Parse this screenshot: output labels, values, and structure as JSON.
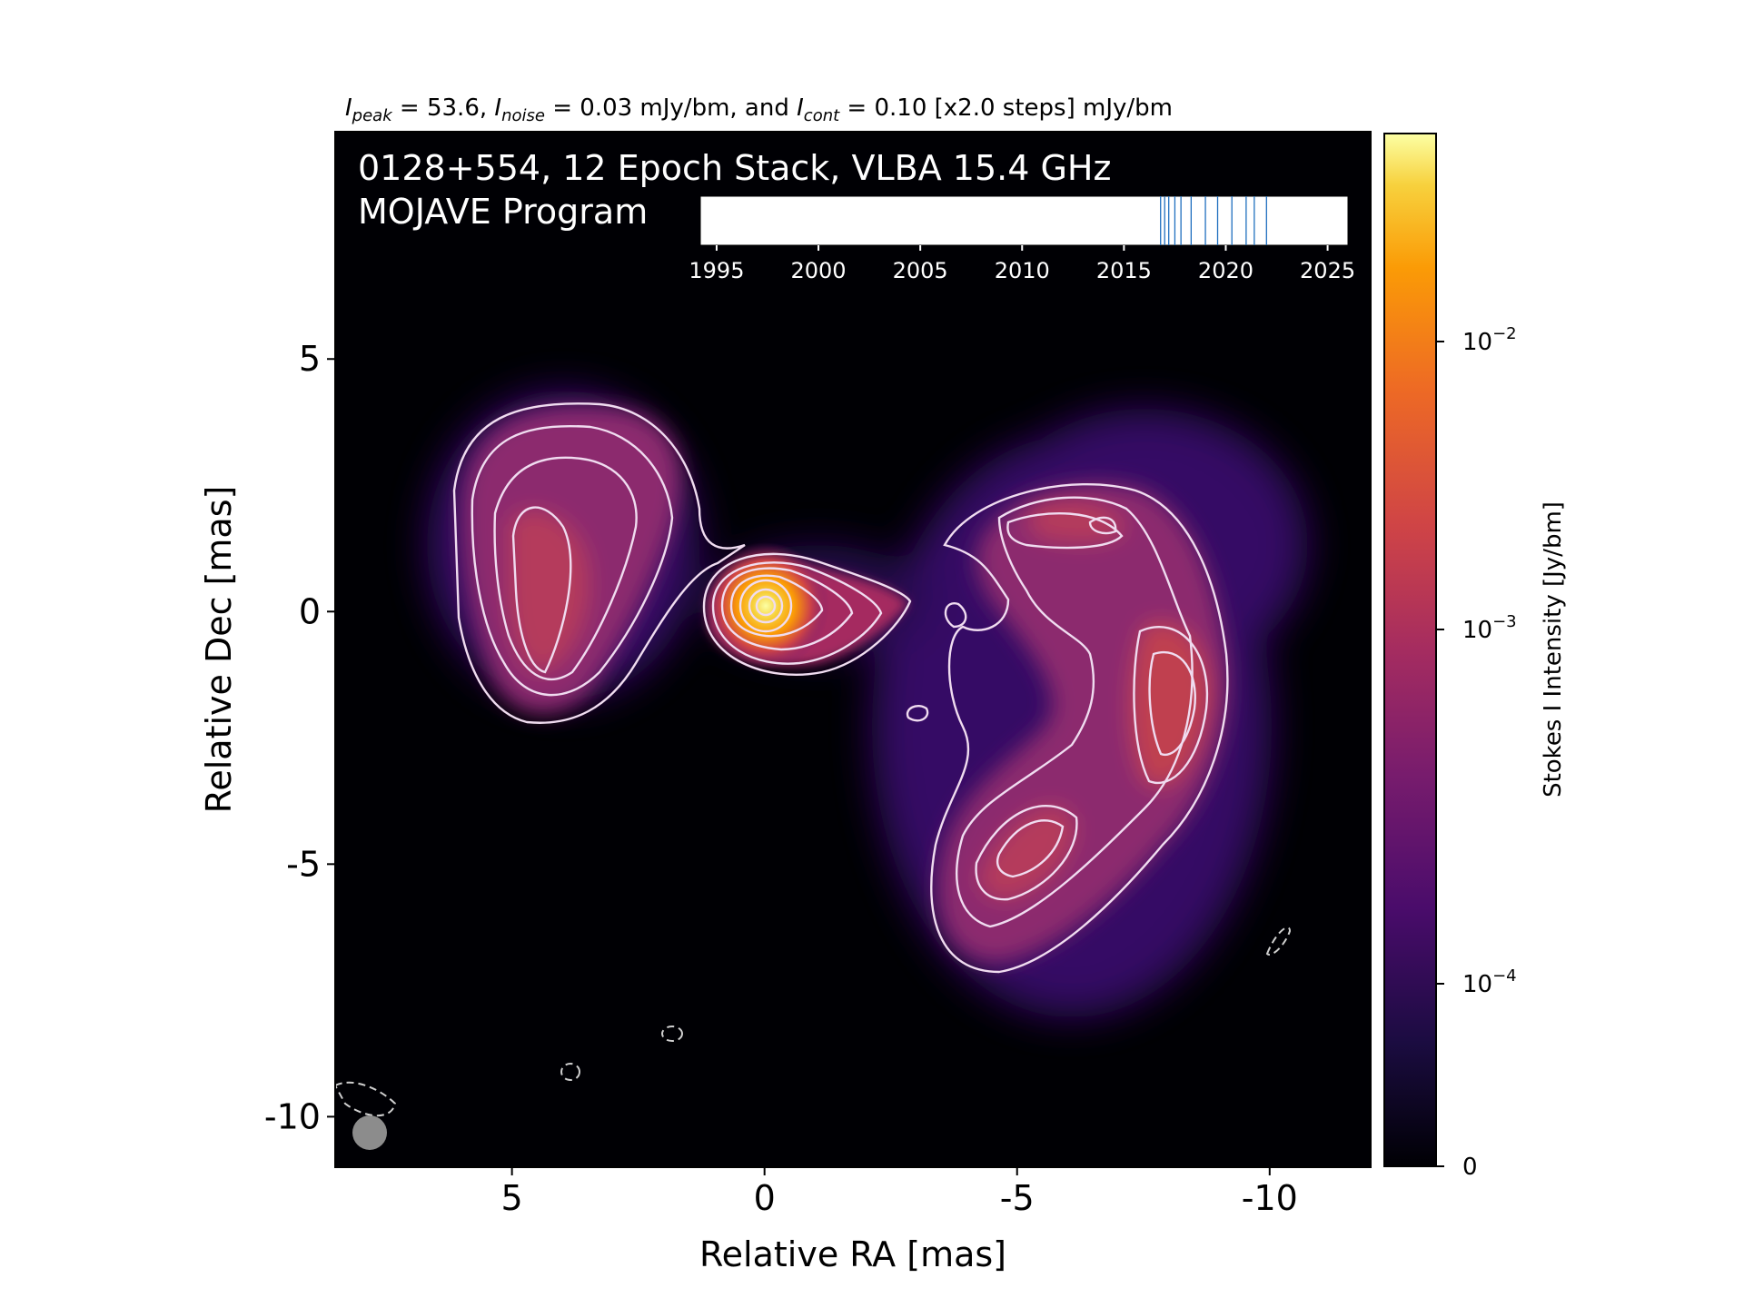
{
  "chart_data": {
    "type": "heatmap",
    "header": {
      "peak_value": "53.6",
      "noise_value": "0.03 mJy/bm",
      "cont_value": "0.10 [x2.0 steps] mJy/bm",
      "eq": " = ",
      "sep1": ", ",
      "sep2": ", and "
    },
    "title_line1": "0128+554, 12 Epoch Stack, VLBA 15.4 GHz",
    "title_line2": "MOJAVE Program",
    "xlabel": "Relative RA [mas]",
    "ylabel": "Relative Dec [mas]",
    "x_ticks": [
      5,
      0,
      -5,
      -10
    ],
    "x_tick_labels": [
      "5",
      "0",
      "-5",
      "-10"
    ],
    "xlim": [
      8.5,
      -12.0
    ],
    "y_ticks": [
      5,
      0,
      -5,
      -10
    ],
    "y_tick_labels": [
      "5",
      "0",
      "-5",
      "-10"
    ],
    "ylim": [
      -11.0,
      9.5
    ],
    "colorbar": {
      "label": "Stokes I Intensity [Jy/bm]",
      "tick_labels": [
        "0",
        "10",
        "10",
        "10"
      ],
      "tick_exponents": [
        "",
        "−4",
        "−3",
        "−2"
      ],
      "scale": "symlog"
    },
    "epoch_timeline": {
      "tick_labels": [
        "1995",
        "2000",
        "2005",
        "2010",
        "2015",
        "2020",
        "2025"
      ],
      "ticks": [
        1995,
        2000,
        2005,
        2010,
        2015,
        2020,
        2025
      ],
      "xlim": [
        1994.2,
        2026.0
      ],
      "epochs": [
        2016.8,
        2017.0,
        2017.2,
        2017.5,
        2017.8,
        2018.3,
        2019.0,
        2019.6,
        2020.3,
        2021.0,
        2021.4,
        2022.0
      ]
    },
    "colors": {
      "epoch_line": "#1f6fbf",
      "contour": "#f0dcf0",
      "beam": "#8c8c8c",
      "background": "#000004"
    },
    "components": [
      {
        "name": "core",
        "x": 0.0,
        "y": 0.0
      },
      {
        "name": "east-lobe",
        "x": 4.2,
        "y": 0.2
      },
      {
        "name": "west-lobe-north",
        "x": -6.8,
        "y": 1.5
      },
      {
        "name": "west-lobe-south",
        "x": -8.2,
        "y": -2.0
      }
    ]
  }
}
